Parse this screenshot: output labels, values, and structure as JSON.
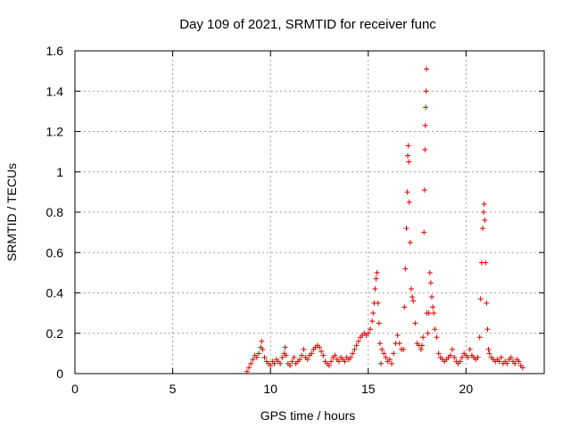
{
  "chart_data": {
    "type": "scatter",
    "title": "Day 109 of 2021, SRMTID for receiver func",
    "xlabel": "GPS time / hours",
    "ylabel": "SRMTID / TECUs",
    "xlim": [
      0,
      24
    ],
    "ylim": [
      0,
      1.6
    ],
    "x_ticks": [
      0,
      5,
      10,
      15,
      20
    ],
    "x_tick_labels": [
      "0",
      "5",
      "10",
      "15",
      "20"
    ],
    "y_ticks": [
      0,
      0.2,
      0.4,
      0.6,
      0.8,
      1.0,
      1.2,
      1.4,
      1.6
    ],
    "y_tick_labels": [
      "0",
      "0.2",
      "0.4",
      "0.6",
      "0.8",
      "1",
      "1.2",
      "1.4",
      "1.6"
    ],
    "grid": true,
    "marker": "+",
    "color": "#e00000",
    "series": [
      {
        "name": "SRMTID",
        "points": [
          [
            8.8,
            0.01
          ],
          [
            8.9,
            0.03
          ],
          [
            9.0,
            0.05
          ],
          [
            9.1,
            0.07
          ],
          [
            9.2,
            0.09
          ],
          [
            9.3,
            0.08
          ],
          [
            9.4,
            0.1
          ],
          [
            9.5,
            0.13
          ],
          [
            9.55,
            0.16
          ],
          [
            9.6,
            0.12
          ],
          [
            9.7,
            0.08
          ],
          [
            9.8,
            0.06
          ],
          [
            9.9,
            0.05
          ],
          [
            10.0,
            0.04
          ],
          [
            10.1,
            0.06
          ],
          [
            10.2,
            0.05
          ],
          [
            10.3,
            0.07
          ],
          [
            10.4,
            0.06
          ],
          [
            10.5,
            0.05
          ],
          [
            10.6,
            0.08
          ],
          [
            10.7,
            0.1
          ],
          [
            10.75,
            0.13
          ],
          [
            10.8,
            0.09
          ],
          [
            10.9,
            0.05
          ],
          [
            11.0,
            0.04
          ],
          [
            11.1,
            0.06
          ],
          [
            11.2,
            0.08
          ],
          [
            11.3,
            0.05
          ],
          [
            11.4,
            0.06
          ],
          [
            11.5,
            0.07
          ],
          [
            11.6,
            0.09
          ],
          [
            11.7,
            0.12
          ],
          [
            11.8,
            0.08
          ],
          [
            11.9,
            0.07
          ],
          [
            12.0,
            0.09
          ],
          [
            12.1,
            0.1
          ],
          [
            12.2,
            0.12
          ],
          [
            12.3,
            0.13
          ],
          [
            12.4,
            0.14
          ],
          [
            12.5,
            0.13
          ],
          [
            12.6,
            0.11
          ],
          [
            12.7,
            0.09
          ],
          [
            12.8,
            0.06
          ],
          [
            12.9,
            0.05
          ],
          [
            13.0,
            0.04
          ],
          [
            13.1,
            0.06
          ],
          [
            13.2,
            0.08
          ],
          [
            13.3,
            0.09
          ],
          [
            13.4,
            0.07
          ],
          [
            13.5,
            0.06
          ],
          [
            13.6,
            0.08
          ],
          [
            13.7,
            0.07
          ],
          [
            13.8,
            0.06
          ],
          [
            13.9,
            0.08
          ],
          [
            14.0,
            0.07
          ],
          [
            14.1,
            0.08
          ],
          [
            14.2,
            0.1
          ],
          [
            14.3,
            0.12
          ],
          [
            14.4,
            0.14
          ],
          [
            14.5,
            0.16
          ],
          [
            14.6,
            0.18
          ],
          [
            14.7,
            0.19
          ],
          [
            14.8,
            0.2
          ],
          [
            14.9,
            0.19
          ],
          [
            15.0,
            0.2
          ],
          [
            15.1,
            0.22
          ],
          [
            15.2,
            0.26
          ],
          [
            15.25,
            0.3
          ],
          [
            15.3,
            0.35
          ],
          [
            15.35,
            0.42
          ],
          [
            15.4,
            0.47
          ],
          [
            15.45,
            0.5
          ],
          [
            15.5,
            0.35
          ],
          [
            15.55,
            0.25
          ],
          [
            15.6,
            0.15
          ],
          [
            15.65,
            0.05
          ],
          [
            15.7,
            0.12
          ],
          [
            15.8,
            0.1
          ],
          [
            15.9,
            0.08
          ],
          [
            16.0,
            0.06
          ],
          [
            16.1,
            0.07
          ],
          [
            16.2,
            0.05
          ],
          [
            16.3,
            0.1
          ],
          [
            16.4,
            0.15
          ],
          [
            16.5,
            0.19
          ],
          [
            16.6,
            0.15
          ],
          [
            16.7,
            0.12
          ],
          [
            16.8,
            0.12
          ],
          [
            16.85,
            0.33
          ],
          [
            16.9,
            0.52
          ],
          [
            16.95,
            0.72
          ],
          [
            17.0,
            0.9
          ],
          [
            17.02,
            1.08
          ],
          [
            17.05,
            1.13
          ],
          [
            17.08,
            1.05
          ],
          [
            17.1,
            0.85
          ],
          [
            17.15,
            0.65
          ],
          [
            17.2,
            0.42
          ],
          [
            17.25,
            0.38
          ],
          [
            17.3,
            0.36
          ],
          [
            17.4,
            0.25
          ],
          [
            17.5,
            0.15
          ],
          [
            17.6,
            0.14
          ],
          [
            17.7,
            0.12
          ],
          [
            17.75,
            0.14
          ],
          [
            17.8,
            0.18
          ],
          [
            17.85,
            0.7
          ],
          [
            17.88,
            0.91
          ],
          [
            17.9,
            1.11
          ],
          [
            17.92,
            1.23
          ],
          [
            17.94,
            1.32
          ],
          [
            17.96,
            1.4
          ],
          [
            17.98,
            1.51
          ],
          [
            18.0,
            0.3
          ],
          [
            18.05,
            0.2
          ],
          [
            18.1,
            0.3
          ],
          [
            18.15,
            0.5
          ],
          [
            18.2,
            0.45
          ],
          [
            18.25,
            0.38
          ],
          [
            18.3,
            0.33
          ],
          [
            18.35,
            0.3
          ],
          [
            18.4,
            0.22
          ],
          [
            18.5,
            0.18
          ],
          [
            18.6,
            0.1
          ],
          [
            18.7,
            0.08
          ],
          [
            18.8,
            0.07
          ],
          [
            18.9,
            0.06
          ],
          [
            19.0,
            0.07
          ],
          [
            19.1,
            0.08
          ],
          [
            19.2,
            0.09
          ],
          [
            19.3,
            0.12
          ],
          [
            19.4,
            0.08
          ],
          [
            19.5,
            0.06
          ],
          [
            19.6,
            0.05
          ],
          [
            19.7,
            0.06
          ],
          [
            19.8,
            0.08
          ],
          [
            19.9,
            0.1
          ],
          [
            20.0,
            0.09
          ],
          [
            20.1,
            0.08
          ],
          [
            20.2,
            0.12
          ],
          [
            20.3,
            0.09
          ],
          [
            20.4,
            0.08
          ],
          [
            20.5,
            0.07
          ],
          [
            20.6,
            0.08
          ],
          [
            20.7,
            0.18
          ],
          [
            20.75,
            0.37
          ],
          [
            20.8,
            0.55
          ],
          [
            20.85,
            0.72
          ],
          [
            20.9,
            0.8
          ],
          [
            20.93,
            0.84
          ],
          [
            20.96,
            0.76
          ],
          [
            21.0,
            0.55
          ],
          [
            21.05,
            0.35
          ],
          [
            21.1,
            0.22
          ],
          [
            21.15,
            0.12
          ],
          [
            21.2,
            0.1
          ],
          [
            21.3,
            0.08
          ],
          [
            21.4,
            0.07
          ],
          [
            21.5,
            0.06
          ],
          [
            21.6,
            0.07
          ],
          [
            21.7,
            0.06
          ],
          [
            21.8,
            0.08
          ],
          [
            21.9,
            0.05
          ],
          [
            22.0,
            0.06
          ],
          [
            22.1,
            0.05
          ],
          [
            22.2,
            0.07
          ],
          [
            22.3,
            0.08
          ],
          [
            22.4,
            0.06
          ],
          [
            22.5,
            0.05
          ],
          [
            22.6,
            0.07
          ],
          [
            22.7,
            0.06
          ],
          [
            22.8,
            0.04
          ],
          [
            22.9,
            0.03
          ]
        ]
      }
    ]
  }
}
